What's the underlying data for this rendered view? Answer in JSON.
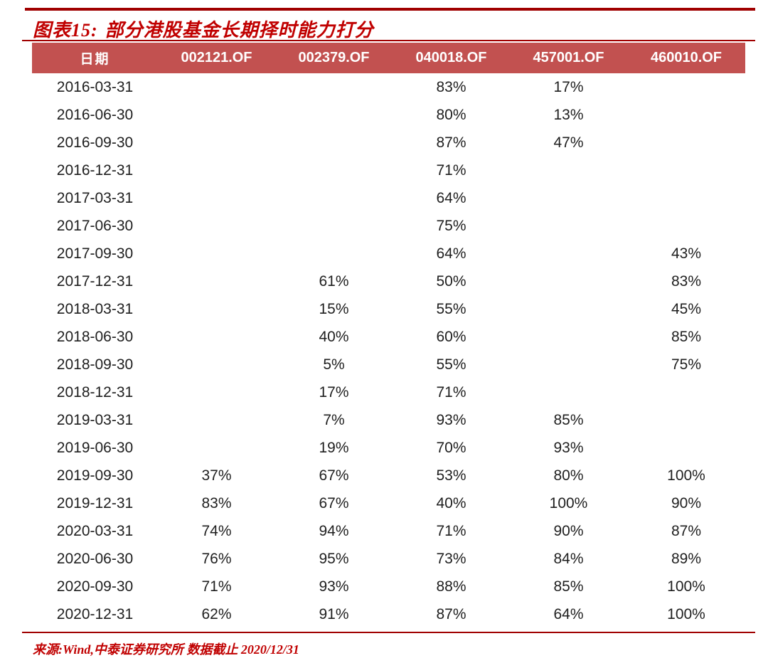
{
  "figure": {
    "label": "图表15:",
    "title": "部分港股基金长期择时能力打分"
  },
  "chart_data": {
    "type": "table",
    "title": "部分港股基金长期择时能力打分",
    "figure_label": "图表15:",
    "columns": [
      "日期",
      "002121.OF",
      "002379.OF",
      "040018.OF",
      "457001.OF",
      "460010.OF"
    ],
    "rows": [
      [
        "2016-03-31",
        "",
        "",
        "83%",
        "17%",
        ""
      ],
      [
        "2016-06-30",
        "",
        "",
        "80%",
        "13%",
        ""
      ],
      [
        "2016-09-30",
        "",
        "",
        "87%",
        "47%",
        ""
      ],
      [
        "2016-12-31",
        "",
        "",
        "71%",
        "",
        ""
      ],
      [
        "2017-03-31",
        "",
        "",
        "64%",
        "",
        ""
      ],
      [
        "2017-06-30",
        "",
        "",
        "75%",
        "",
        ""
      ],
      [
        "2017-09-30",
        "",
        "",
        "64%",
        "",
        "43%"
      ],
      [
        "2017-12-31",
        "",
        "61%",
        "50%",
        "",
        "83%"
      ],
      [
        "2018-03-31",
        "",
        "15%",
        "55%",
        "",
        "45%"
      ],
      [
        "2018-06-30",
        "",
        "40%",
        "60%",
        "",
        "85%"
      ],
      [
        "2018-09-30",
        "",
        "5%",
        "55%",
        "",
        "75%"
      ],
      [
        "2018-12-31",
        "",
        "17%",
        "71%",
        "",
        ""
      ],
      [
        "2019-03-31",
        "",
        "7%",
        "93%",
        "85%",
        ""
      ],
      [
        "2019-06-30",
        "",
        "19%",
        "70%",
        "93%",
        ""
      ],
      [
        "2019-09-30",
        "37%",
        "67%",
        "53%",
        "80%",
        "100%"
      ],
      [
        "2019-12-31",
        "83%",
        "67%",
        "40%",
        "100%",
        "90%"
      ],
      [
        "2020-03-31",
        "74%",
        "94%",
        "71%",
        "90%",
        "87%"
      ],
      [
        "2020-06-30",
        "76%",
        "95%",
        "73%",
        "84%",
        "89%"
      ],
      [
        "2020-09-30",
        "71%",
        "93%",
        "88%",
        "85%",
        "100%"
      ],
      [
        "2020-12-31",
        "62%",
        "91%",
        "87%",
        "64%",
        "100%"
      ]
    ],
    "layout": {
      "header_background": "#C25150",
      "header_text_color": "#FFFFFF",
      "grid": "off",
      "value_alignment": "center"
    }
  },
  "footer": {
    "source": "来源:Wind,中泰证券研究所 数据截止 2020/12/31"
  },
  "colors": {
    "rule": "#A00000",
    "accent_text": "#C00000",
    "header_bg": "#C25150",
    "body_text": "#1F1F1F",
    "background": "#FFFFFF"
  }
}
